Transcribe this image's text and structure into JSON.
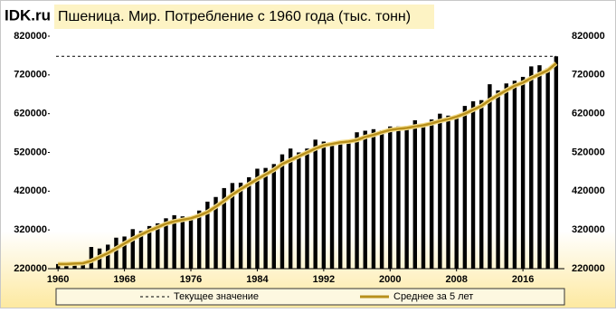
{
  "chart_data": {
    "type": "bar",
    "logo": "IDK.ru",
    "title": "Пшеница. Мир. Потребление с 1960 года (тыс. тонн)",
    "x": [
      1960,
      1961,
      1962,
      1963,
      1964,
      1965,
      1966,
      1967,
      1968,
      1969,
      1970,
      1971,
      1972,
      1973,
      1974,
      1975,
      1976,
      1977,
      1978,
      1979,
      1980,
      1981,
      1982,
      1983,
      1984,
      1985,
      1986,
      1987,
      1988,
      1989,
      1990,
      1991,
      1992,
      1993,
      1994,
      1995,
      1996,
      1997,
      1998,
      1999,
      2000,
      2001,
      2002,
      2003,
      2004,
      2005,
      2006,
      2007,
      2008,
      2009,
      2010,
      2011,
      2012,
      2013,
      2014,
      2015,
      2016,
      2017,
      2018,
      2019,
      2020
    ],
    "values": [
      232000,
      233000,
      236000,
      237000,
      276000,
      272000,
      282000,
      300000,
      303000,
      322000,
      317000,
      330000,
      337000,
      350000,
      358000,
      355000,
      352000,
      370000,
      393000,
      405000,
      428000,
      441000,
      442000,
      456000,
      478000,
      480000,
      490000,
      515000,
      530000,
      520000,
      530000,
      553000,
      548000,
      545000,
      550000,
      550000,
      572000,
      576000,
      580000,
      577000,
      587000,
      587000,
      588000,
      603000,
      593000,
      605000,
      620000,
      615000,
      612000,
      640000,
      652000,
      655000,
      696000,
      680000,
      698000,
      705000,
      715000,
      742000,
      745000,
      737000,
      768000
    ],
    "color": "#000000",
    "moving_average": {
      "name": "Среднее за 5 лет",
      "color": "#b8901c",
      "values": [
        232000,
        232000,
        233000,
        234000,
        240000,
        250000,
        260000,
        272000,
        285000,
        297000,
        308000,
        318000,
        327000,
        336000,
        342000,
        346000,
        350000,
        357000,
        366000,
        380000,
        395000,
        411000,
        425000,
        438000,
        451000,
        463000,
        475000,
        490000,
        500000,
        510000,
        520000,
        530000,
        538000,
        542000,
        546000,
        548000,
        552000,
        560000,
        565000,
        572000,
        578000,
        581000,
        583000,
        587000,
        590000,
        595000,
        601000,
        606000,
        612000,
        620000,
        630000,
        640000,
        655000,
        668000,
        680000,
        692000,
        700000,
        712000,
        722000,
        732000,
        750000
      ]
    },
    "current_line": {
      "name": "Текущее значение",
      "color": "#000000",
      "dashed": true
    },
    "xlim": [
      1959,
      2021
    ],
    "xticks": [
      1960,
      1968,
      1976,
      1984,
      1992,
      2000,
      2008,
      2016
    ],
    "ylim": [
      220000,
      820000
    ],
    "yticks": [
      220000,
      320000,
      420000,
      520000,
      620000,
      720000,
      820000
    ]
  }
}
